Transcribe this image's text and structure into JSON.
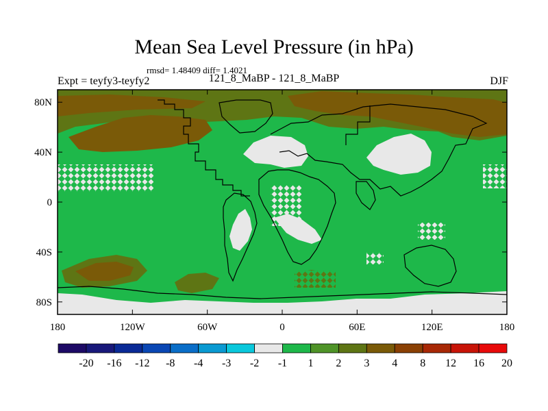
{
  "title": "Mean Sea Level Pressure (in hPa)",
  "stats_text": "rmsd= 1.48409 diff= 1.4021",
  "left_string": "Expt = teyfy3-teyfy2",
  "center_string": "121_8_MaBP - 121_8_MaBP",
  "right_string": "DJF",
  "axes": {
    "x_ticks": [
      {
        "value": -180,
        "label": "180"
      },
      {
        "value": -120,
        "label": "120W"
      },
      {
        "value": -60,
        "label": "60W"
      },
      {
        "value": 0,
        "label": "0"
      },
      {
        "value": 60,
        "label": "60E"
      },
      {
        "value": 120,
        "label": "120E"
      },
      {
        "value": 180,
        "label": "180"
      }
    ],
    "y_ticks": [
      {
        "value": 80,
        "label": "80N"
      },
      {
        "value": 40,
        "label": "40N"
      },
      {
        "value": 0,
        "label": "0"
      },
      {
        "value": -40,
        "label": "40S"
      },
      {
        "value": -80,
        "label": "80S"
      }
    ],
    "lon_range": [
      -180,
      180
    ],
    "lat_range": [
      -90,
      90
    ]
  },
  "colorbar": {
    "colors": [
      "#1d0a66",
      "#18187a",
      "#0a2a96",
      "#0a47b4",
      "#0a6ec8",
      "#0a9ad2",
      "#0ac8dc",
      "#e8e8e8",
      "#1eb84a",
      "#4f9428",
      "#5e7514",
      "#7a5a08",
      "#8a4004",
      "#a82806",
      "#c81408",
      "#e80a0a"
    ],
    "labels": [
      "-20",
      "-16",
      "-12",
      "-8",
      "-4",
      "-3",
      "-2",
      "-1",
      "1",
      "2",
      "3",
      "4",
      "8",
      "12",
      "16",
      "20"
    ]
  },
  "field_colors": {
    "ocean_base": "#1eb84a",
    "level_2_3": "#5e7514",
    "level_3_4": "#7a5a08",
    "level_neg1_1": "#e8e8e8",
    "coast": "#000000"
  }
}
